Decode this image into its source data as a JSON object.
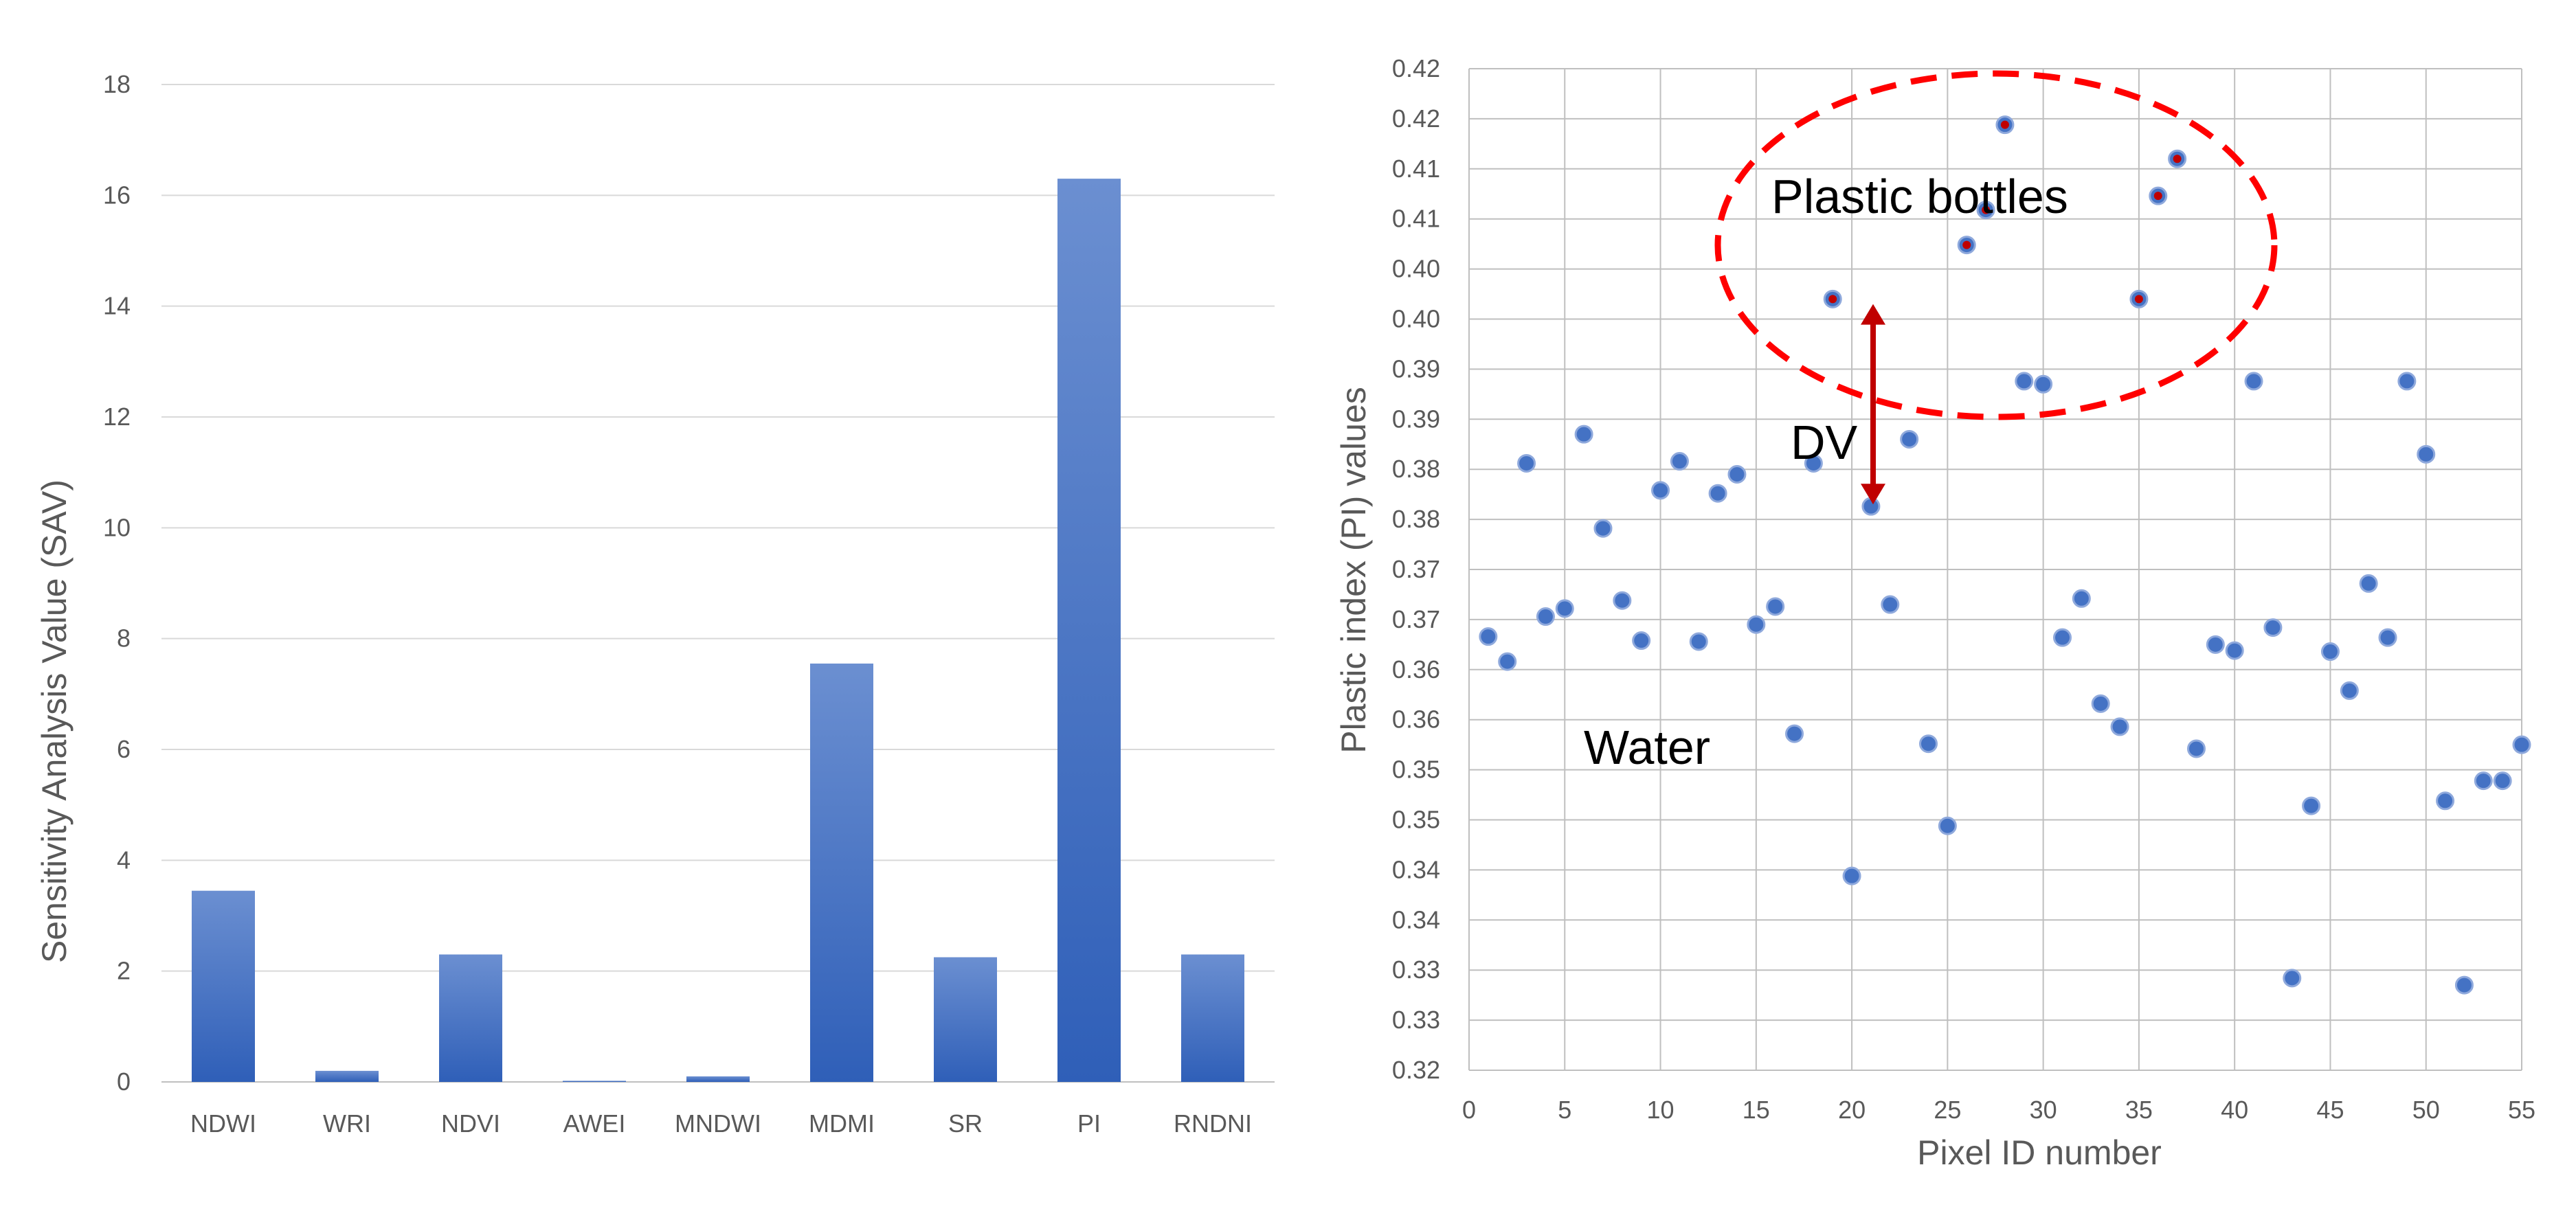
{
  "chart_data": [
    {
      "type": "bar",
      "title": "",
      "xlabel": "",
      "ylabel": "Sensitivity Analysis Value (SAV)",
      "ylim": [
        0,
        18
      ],
      "yticks": [
        "0",
        "2",
        "4",
        "6",
        "8",
        "10",
        "12",
        "14",
        "16",
        "18"
      ],
      "grid": "horizontal",
      "colors": {
        "bar": "#4472c4",
        "bar_light": "#6b8fd1",
        "grid": "#d9d9d9"
      },
      "categories": [
        "NDWI",
        "WRI",
        "NDVI",
        "AWEI",
        "MNDWI",
        "MDMI",
        "SR",
        "PI",
        "RNDNI"
      ],
      "values": [
        3.45,
        0.2,
        2.3,
        0.02,
        0.1,
        7.55,
        2.25,
        16.3,
        2.3
      ]
    },
    {
      "type": "scatter",
      "title": "",
      "xlabel": "Pixel ID number",
      "ylabel": "Plastic index (PI) values",
      "xlim": [
        0,
        55
      ],
      "ylim": [
        0.32,
        0.42
      ],
      "xticks": [
        "0",
        "5",
        "10",
        "15",
        "20",
        "25",
        "30",
        "35",
        "40",
        "45",
        "50",
        "55"
      ],
      "yticks": [
        "0.32",
        "0.33",
        "0.33",
        "0.34",
        "0.34",
        "0.35",
        "0.35",
        "0.36",
        "0.36",
        "0.37",
        "0.37",
        "0.38",
        "0.38",
        "0.39",
        "0.39",
        "0.40",
        "0.40",
        "0.41",
        "0.41",
        "0.42",
        "0.42"
      ],
      "grid": "both",
      "colors": {
        "point": "#4472c4",
        "highlight": "#c00000",
        "ellipse": "#ff0000",
        "arrow": "#c00000",
        "grid": "#bfbfbf"
      },
      "annotations": {
        "plastic": "Plastic bottles",
        "water": "Water",
        "dv": "DV"
      },
      "dv_range": [
        0.3765,
        0.3965
      ],
      "highlight_ids": [
        19,
        26,
        27,
        28,
        35,
        36,
        37
      ],
      "points": [
        [
          1,
          0.3633
        ],
        [
          2,
          0.3608
        ],
        [
          3,
          0.3806
        ],
        [
          4,
          0.3653
        ],
        [
          5,
          0.3661
        ],
        [
          6,
          0.3835
        ],
        [
          7,
          0.3741
        ],
        [
          8,
          0.3669
        ],
        [
          9,
          0.3629
        ],
        [
          10,
          0.3779
        ],
        [
          11,
          0.3808
        ],
        [
          12,
          0.3628
        ],
        [
          13,
          0.3776
        ],
        [
          14,
          0.3795
        ],
        [
          15,
          0.3645
        ],
        [
          16,
          0.3663
        ],
        [
          17,
          0.3536
        ],
        [
          18,
          0.3806
        ],
        [
          19,
          0.397
        ],
        [
          20,
          0.3394
        ],
        [
          21,
          0.3763
        ],
        [
          22,
          0.3665
        ],
        [
          23,
          0.383
        ],
        [
          24,
          0.3526
        ],
        [
          25,
          0.3444
        ],
        [
          26,
          0.4024
        ],
        [
          27,
          0.4059
        ],
        [
          28,
          0.4144
        ],
        [
          29,
          0.3888
        ],
        [
          30,
          0.3885
        ],
        [
          31,
          0.3632
        ],
        [
          32,
          0.3671
        ],
        [
          33,
          0.3566
        ],
        [
          34,
          0.3543
        ],
        [
          35,
          0.397
        ],
        [
          36,
          0.4073
        ],
        [
          37,
          0.411
        ],
        [
          38,
          0.3521
        ],
        [
          39,
          0.3625
        ],
        [
          40,
          0.3619
        ],
        [
          41,
          0.3888
        ],
        [
          42,
          0.3642
        ],
        [
          43,
          0.3292
        ],
        [
          44,
          0.3464
        ],
        [
          45,
          0.3618
        ],
        [
          46,
          0.3579
        ],
        [
          47,
          0.3686
        ],
        [
          48,
          0.3632
        ],
        [
          49,
          0.3888
        ],
        [
          50,
          0.3815
        ],
        [
          51,
          0.3469
        ],
        [
          52,
          0.3285
        ],
        [
          53,
          0.3489
        ],
        [
          54,
          0.3489
        ],
        [
          55,
          0.3525
        ]
      ]
    }
  ]
}
